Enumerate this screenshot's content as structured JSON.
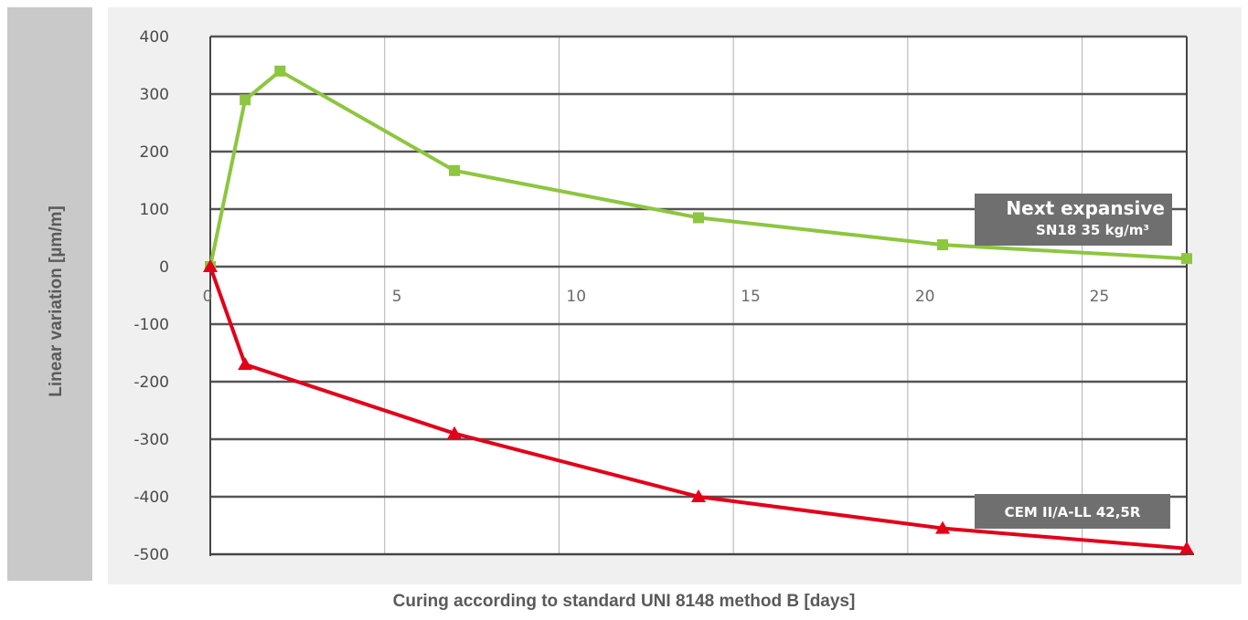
{
  "chart_data": {
    "type": "line",
    "xlabel": "Curing according to standard UNI 8148 method B [days]",
    "ylabel": "Linear variation [µm/m]",
    "xlim": [
      0,
      28
    ],
    "ylim": [
      -500,
      400
    ],
    "x_ticks": [
      "0",
      "5",
      "10",
      "15",
      "20",
      "25"
    ],
    "y_ticks": [
      "400",
      "300",
      "200",
      "100",
      "0",
      "-100",
      "-200",
      "-300",
      "-400",
      "-500"
    ],
    "grid": true,
    "series": [
      {
        "name": "Next expansive SN18 35 kg/m³",
        "label_title": "Next expansive",
        "label_sub": "SN18 35 kg/m³",
        "color": "#8dc63f",
        "marker": "square",
        "x": [
          0,
          1,
          2,
          7,
          14,
          21,
          28
        ],
        "y": [
          0,
          290,
          340,
          167,
          85,
          38,
          14
        ]
      },
      {
        "name": "CEM II/A-LL 42,5R",
        "label_title": "CEM II/A-LL 42,5R",
        "color": "#e2001a",
        "marker": "triangle",
        "x": [
          0,
          1,
          7,
          14,
          21,
          28
        ],
        "y": [
          0,
          -170,
          -290,
          -400,
          -455,
          -490
        ]
      }
    ]
  }
}
